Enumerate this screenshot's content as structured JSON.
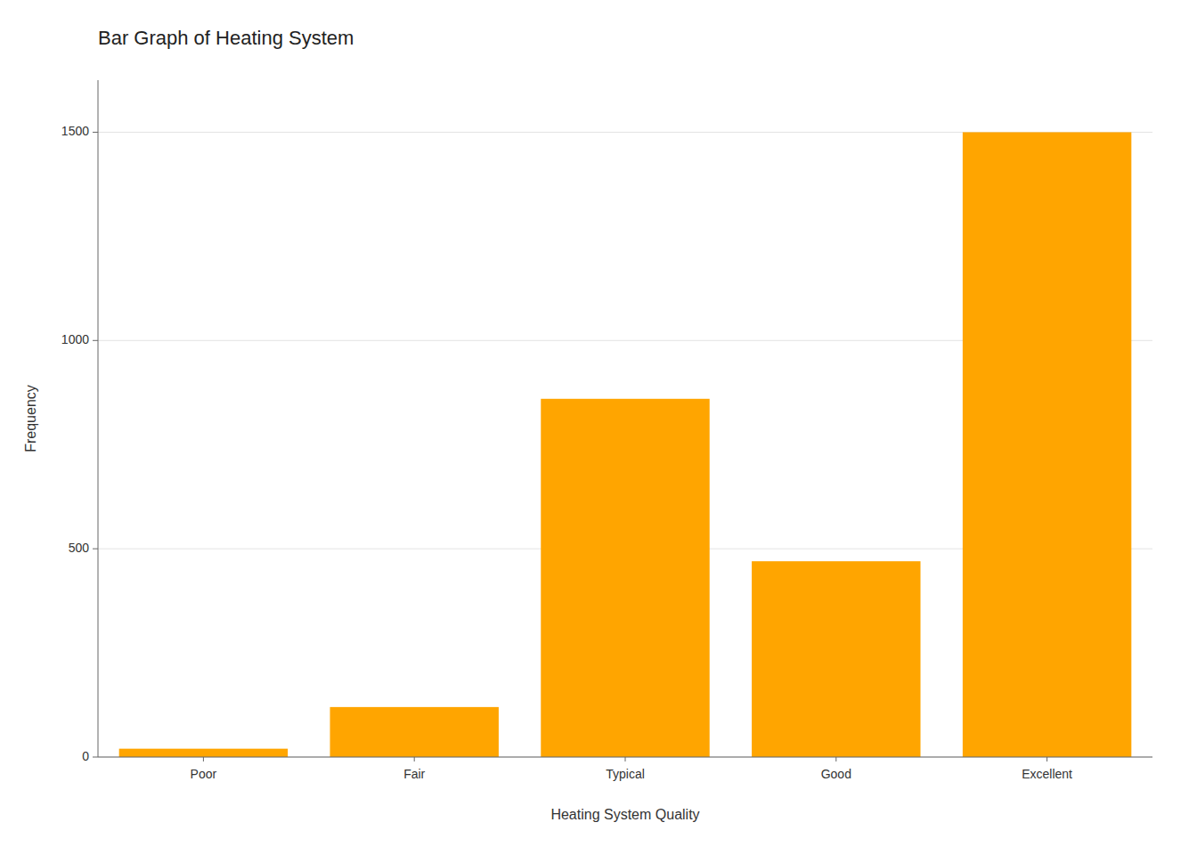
{
  "chart_data": {
    "type": "bar",
    "title": "Bar Graph of Heating System",
    "xlabel": "Heating System Quality",
    "ylabel": "Frequency",
    "categories": [
      "Poor",
      "Fair",
      "Typical",
      "Good",
      "Excellent"
    ],
    "values": [
      20,
      120,
      860,
      470,
      1500
    ],
    "color": "#FFA500",
    "ylim": [
      0,
      1625
    ],
    "yticks": [
      0,
      500,
      1000,
      1500
    ],
    "grid": true
  }
}
